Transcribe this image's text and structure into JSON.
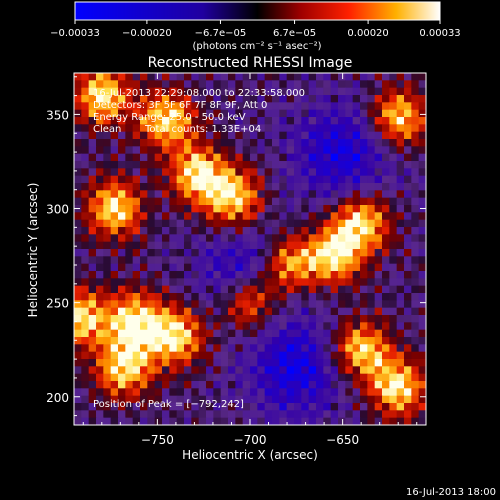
{
  "chart_data": {
    "type": "heatmap",
    "title": "Reconstructed RHESSI Image",
    "xlabel": "Heliocentric X (arcsec)",
    "ylabel": "Heliocentric Y (arcsec)",
    "xlim": [
      -795,
      -605
    ],
    "ylim": [
      185,
      372
    ],
    "x_ticks": [
      -750,
      -700,
      -650
    ],
    "y_ticks": [
      200,
      250,
      300,
      350
    ],
    "x_tick_labels": [
      "−750",
      "−700",
      "−650"
    ],
    "y_tick_labels": [
      "200",
      "250",
      "300",
      "350"
    ],
    "colorbar": {
      "ticks": [
        -0.00033,
        -0.0002,
        -6.7e-05,
        6.7e-05,
        0.0002,
        0.00033
      ],
      "tick_labels": [
        "−0.00033",
        "−0.00020",
        "−6.7e−05",
        "6.7e−05",
        "0.00020",
        "0.00033"
      ],
      "units_label": "(photons cm⁻² s⁻¹ asec⁻²)",
      "colormap": "blue-black-red-yellow-white"
    },
    "annotations": {
      "time": "16-Jul-2013 22:29:08.000 to 22:33:58.000",
      "detectors": "Detectors: 3F 5F 6F 7F 8F 9F, Att 0",
      "energy": "Energy Range: 25.0 - 50.0 keV",
      "method": "Clean",
      "counts": "Total counts: 1.33E+04",
      "peak": "Position of Peak = [−792,242]"
    },
    "peak_position": [
      -792,
      242
    ],
    "bright_regions": [
      {
        "x": -780,
        "y": 360
      },
      {
        "x": -745,
        "y": 347
      },
      {
        "x": -728,
        "y": 318
      },
      {
        "x": -709,
        "y": 305
      },
      {
        "x": -773,
        "y": 300
      },
      {
        "x": -762,
        "y": 240
      },
      {
        "x": -740,
        "y": 232
      },
      {
        "x": -792,
        "y": 242
      },
      {
        "x": -620,
        "y": 348
      },
      {
        "x": -640,
        "y": 292
      },
      {
        "x": -655,
        "y": 275
      },
      {
        "x": -680,
        "y": 270
      },
      {
        "x": -700,
        "y": 250
      },
      {
        "x": -640,
        "y": 225
      },
      {
        "x": -620,
        "y": 205
      },
      {
        "x": -768,
        "y": 215
      }
    ],
    "dark_regions": [
      {
        "x": -650,
        "y": 330
      },
      {
        "x": -700,
        "y": 265
      },
      {
        "x": -675,
        "y": 215
      }
    ]
  },
  "footer": {
    "date": "16-Jul-2013 18:00"
  }
}
